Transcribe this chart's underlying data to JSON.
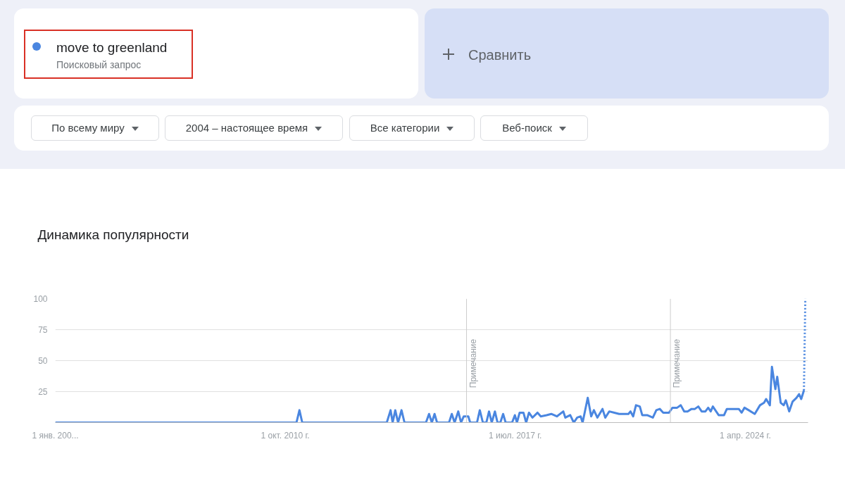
{
  "chart_data": {
    "type": "line",
    "title": "Динамика популярности",
    "subtitle": "Поисковый запрос",
    "annotations": [
      "Сравнить",
      "По всему миру",
      "2004 – настоящее время",
      "Все категории",
      "Веб-поиск"
    ],
    "xlim": [
      "2004-01-01",
      "2026-02-02"
    ],
    "ylim": [
      0,
      100
    ],
    "xticks": [
      {
        "value": "2004-01-01",
        "label": "1 янв. 200..."
      },
      {
        "value": "2010-10-01",
        "label": "1 окт. 2010 г."
      },
      {
        "value": "2017-07-01",
        "label": "1 июл. 2017 г."
      },
      {
        "value": "2024-04-01",
        "label": "1 апр. 2024 г."
      }
    ],
    "yticks": [
      {
        "value": 0,
        "label": null
      },
      25,
      50,
      75,
      100
    ],
    "grid": "y",
    "legend": "top left",
    "marker": "none",
    "ref_lines": [
      {
        "axis": "x",
        "value": "2016-01-26",
        "label": "Примечание",
        "color": "#cccccc"
      },
      {
        "axis": "x",
        "value": "2022-01-19",
        "label": "Примечание",
        "color": "#cccccc"
      }
    ],
    "series": [
      {
        "name": "move to greenland",
        "color": "#4a86e0",
        "line_style": "solid",
        "x": [
          "2004-01-01",
          "2011-01-08",
          "2011-01-29",
          "2011-03-02",
          "2011-04-01",
          "2013-09-23",
          "2013-11-03",
          "2013-11-25",
          "2013-12-23",
          "2014-01-22",
          "2014-02-28",
          "2014-04-01",
          "2014-11-17",
          "2014-12-20",
          "2015-01-19",
          "2015-02-17",
          "2015-03-16",
          "2015-07-22",
          "2015-08-21",
          "2015-09-20",
          "2015-10-29",
          "2015-11-28",
          "2015-12-27",
          "2016-02-14",
          "2016-03-05",
          "2016-05-17",
          "2016-06-16",
          "2016-07-19",
          "2016-08-25",
          "2016-09-23",
          "2016-10-22",
          "2016-11-25",
          "2016-12-23",
          "2017-01-22",
          "2017-02-21",
          "2017-03-20",
          "2017-05-28",
          "2017-06-27",
          "2017-07-19",
          "2017-08-17",
          "2017-09-27",
          "2017-10-26",
          "2017-11-25",
          "2018-01-01",
          "2018-02-25",
          "2018-04-01",
          "2018-06-02",
          "2018-07-22",
          "2018-09-20",
          "2018-11-28",
          "2018-12-20",
          "2019-02-10",
          "2019-03-20",
          "2019-04-26",
          "2019-06-02",
          "2019-06-23",
          "2019-08-17",
          "2019-09-23",
          "2019-10-22",
          "2019-11-28",
          "2020-01-22",
          "2020-02-21",
          "2020-04-04",
          "2020-05-28",
          "2020-07-19",
          "2020-10-26",
          "2020-11-17",
          "2020-12-16",
          "2021-01-15",
          "2021-02-25",
          "2021-03-23",
          "2021-05-14",
          "2021-07-15",
          "2021-08-21",
          "2021-09-27",
          "2021-11-03",
          "2022-01-04",
          "2022-02-10",
          "2022-04-01",
          "2022-05-10",
          "2022-06-16",
          "2022-07-22",
          "2022-09-02",
          "2022-10-08",
          "2022-11-14",
          "2022-12-20",
          "2023-01-29",
          "2023-02-28",
          "2023-03-27",
          "2023-04-19",
          "2023-06-20",
          "2023-08-17",
          "2023-09-16",
          "2024-01-01",
          "2024-01-22",
          "2024-02-21",
          "2024-03-23",
          "2024-05-07",
          "2024-07-11",
          "2024-09-05",
          "2024-10-19",
          "2024-11-10",
          "2024-12-20",
          "2025-01-11",
          "2025-02-17",
          "2025-03-09",
          "2025-04-15",
          "2025-05-17",
          "2025-06-09",
          "2025-07-15",
          "2025-08-21",
          "2025-10-01",
          "2025-10-29",
          "2025-11-21",
          "2025-12-20"
        ],
        "values": [
          0,
          0,
          0,
          10,
          0,
          0,
          10,
          0,
          10,
          0,
          10,
          0,
          0,
          7,
          0,
          7,
          0,
          0,
          7,
          0,
          9,
          0,
          5,
          5,
          0,
          0,
          10,
          0,
          0,
          9,
          0,
          9,
          0,
          0,
          7,
          0,
          0,
          6,
          0,
          8,
          8,
          0,
          8,
          4,
          8,
          5,
          6,
          7,
          5,
          9,
          4,
          6,
          0,
          4,
          5,
          0,
          20,
          5,
          10,
          4,
          11,
          4,
          9,
          8,
          7,
          7,
          9,
          5,
          14,
          13,
          6,
          6,
          4,
          10,
          11,
          8,
          8,
          12,
          12,
          14,
          9,
          9,
          11,
          11,
          13,
          9,
          9,
          12,
          9,
          13,
          6,
          6,
          11,
          11,
          11,
          8,
          12,
          10,
          7,
          14,
          16,
          19,
          14,
          45,
          27,
          37,
          16,
          14,
          18,
          9,
          17,
          20,
          23,
          19,
          26
        ]
      },
      {
        "color": "#4a86e0",
        "line_style": "dotted",
        "x": [
          "2025-12-20",
          "2026-01-04"
        ],
        "values": [
          26,
          100
        ]
      }
    ]
  }
}
